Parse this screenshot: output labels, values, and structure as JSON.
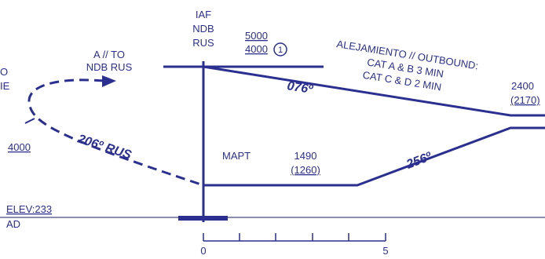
{
  "fix": {
    "line1": "IAF",
    "line2": "NDB",
    "line3": "RUS"
  },
  "alt_top": {
    "upper": "5000",
    "lower": "4000",
    "note_ref": "1"
  },
  "left_partial": {
    "top": "O",
    "bottom": "IE"
  },
  "to_ndb": {
    "line1": "A // TO",
    "line2": "NDB RUS"
  },
  "outbound_course": "076º",
  "outbound_text": {
    "line1": "ALEJAMIENTO // OUTBOUND:",
    "line2": "CAT A & B 3 MIN",
    "line3": "CAT C & D 2 MIN"
  },
  "right_alt": {
    "upper": "2400",
    "lower": "(2170)"
  },
  "left_alt": "4000",
  "inbound_course": "206º RUS",
  "mapt": "MAPT",
  "mapt_alt": {
    "upper": "1490",
    "lower": "(1260)"
  },
  "climb_course": "256º",
  "elev": "ELEV:233",
  "ad": "AD",
  "scale": {
    "start": "0",
    "mark": "5"
  },
  "colors": {
    "ink": "#2b2f8f",
    "ground": "#1a1a5e"
  }
}
